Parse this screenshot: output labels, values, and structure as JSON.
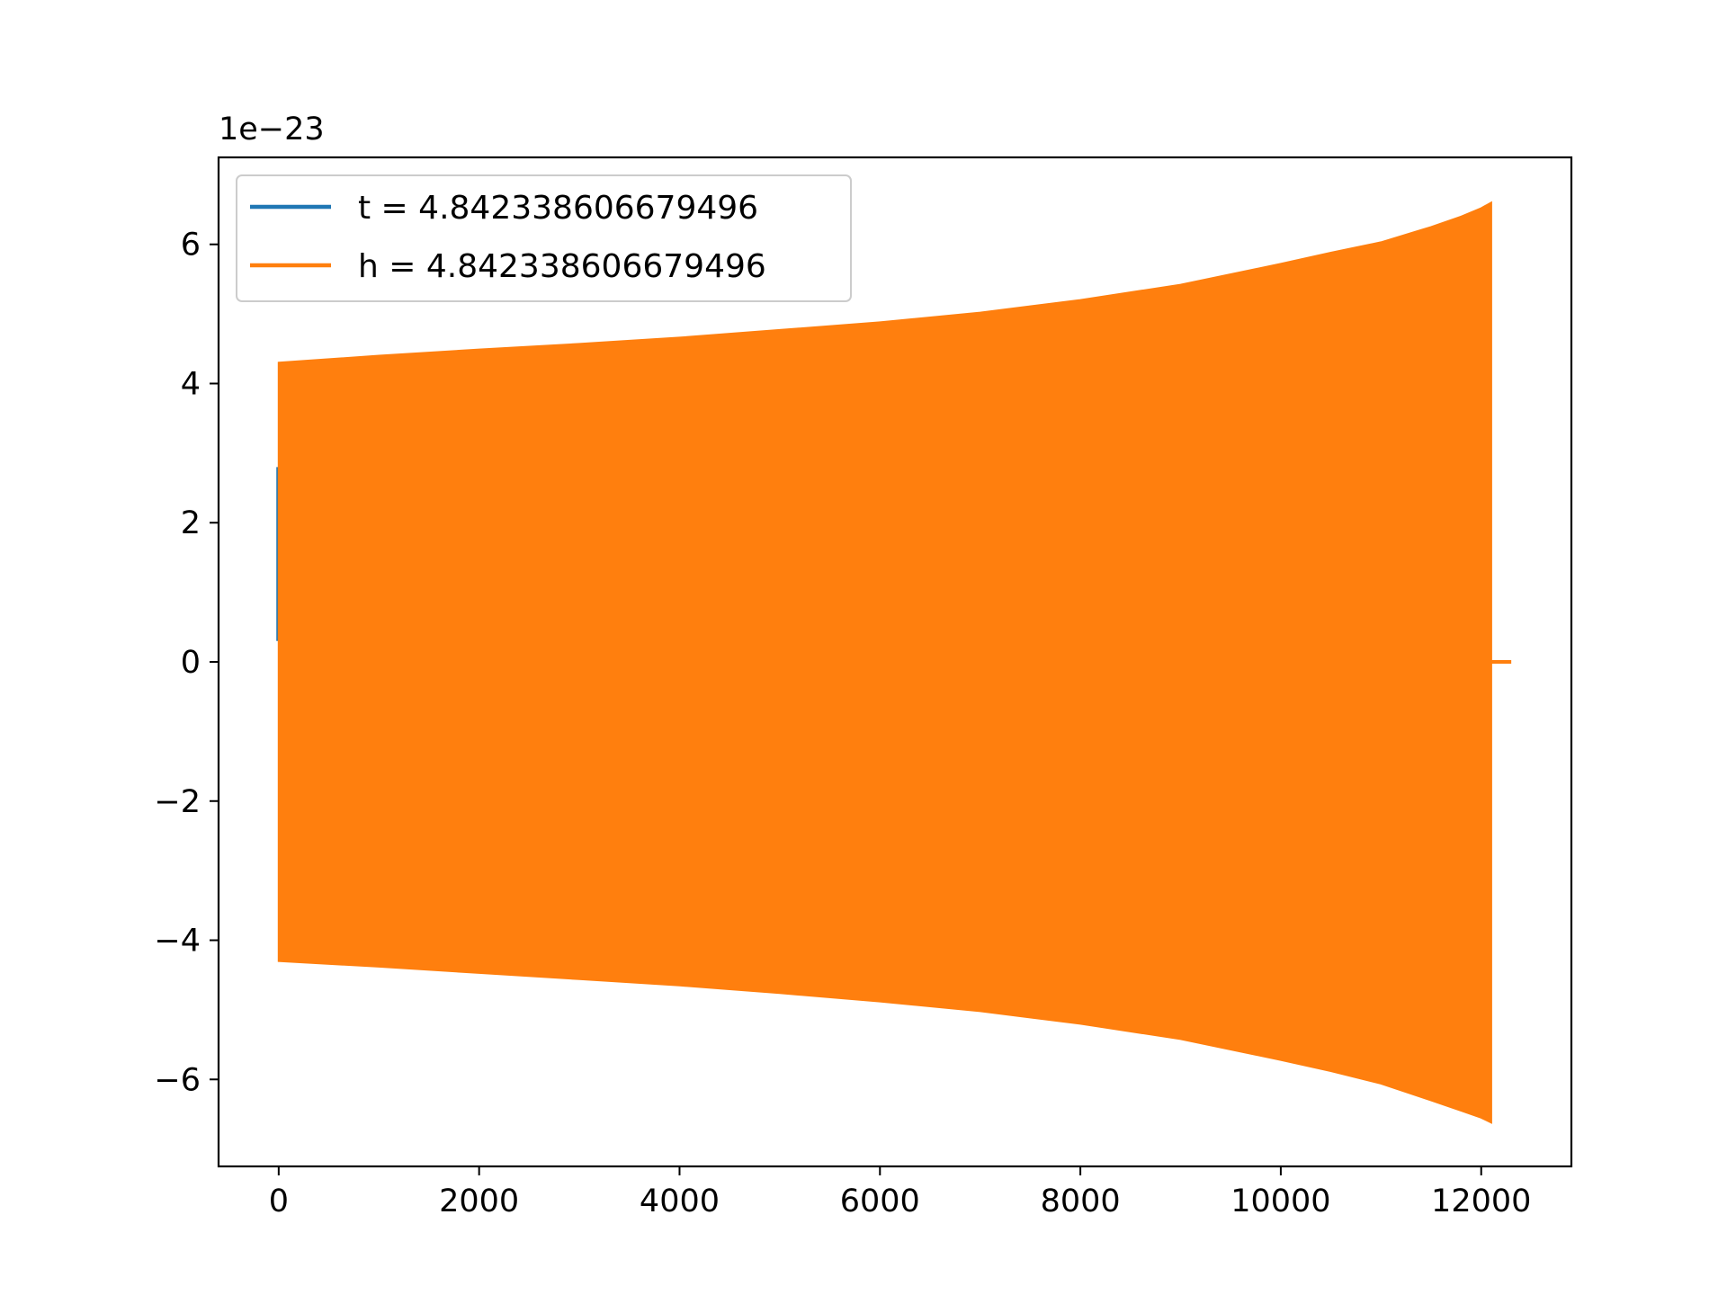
{
  "chart_data": {
    "type": "line",
    "title": "",
    "xlabel": "",
    "ylabel": "",
    "y_offset_label": "1e−23",
    "xlim": [
      -600,
      12900
    ],
    "ylim": [
      -7.25,
      7.25
    ],
    "grid": false,
    "legend_position": "top-left",
    "x_ticks": [
      0,
      2000,
      4000,
      6000,
      8000,
      10000,
      12000
    ],
    "x_tick_labels": [
      "0",
      "2000",
      "4000",
      "6000",
      "8000",
      "10000",
      "12000"
    ],
    "y_ticks": [
      -6,
      -4,
      -2,
      0,
      2,
      4,
      6
    ],
    "y_tick_labels": [
      "−6",
      "−4",
      "−2",
      "0",
      "2",
      "4",
      "6"
    ],
    "series": [
      {
        "name": "t = 4.842338606679496",
        "color": "#1f77b4",
        "kind": "spike",
        "x": [
          -10,
          -10,
          0
        ],
        "y": [
          0.3,
          2.8,
          0.3
        ]
      },
      {
        "name": "h = 4.842338606679496",
        "color": "#ff7f0e",
        "kind": "oscillation-envelope",
        "x": [
          0,
          1000,
          2000,
          3000,
          4000,
          5000,
          6000,
          7000,
          8000,
          9000,
          10000,
          10500,
          11000,
          11500,
          11800,
          12000,
          12100
        ],
        "upper": [
          4.3,
          4.4,
          4.49,
          4.57,
          4.66,
          4.77,
          4.88,
          5.02,
          5.2,
          5.42,
          5.72,
          5.88,
          6.03,
          6.25,
          6.4,
          6.52,
          6.6
        ],
        "lower": [
          -4.3,
          -4.38,
          -4.47,
          -4.56,
          -4.65,
          -4.76,
          -4.88,
          -5.02,
          -5.2,
          -5.42,
          -5.72,
          -5.88,
          -6.06,
          -6.3,
          -6.45,
          -6.55,
          -6.62
        ],
        "tail_x": [
          12100,
          12300
        ],
        "tail_y": [
          0,
          0
        ]
      }
    ]
  }
}
